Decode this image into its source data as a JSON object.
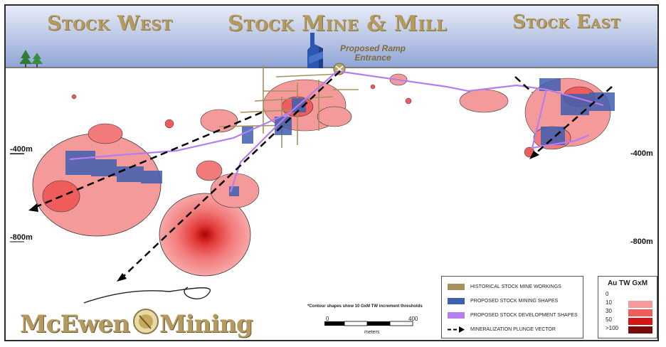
{
  "regions": {
    "west": "Stock West",
    "mill": "Stock Mine & Mill",
    "east": "Stock East"
  },
  "ramp_label_line1": "Proposed Ramp",
  "ramp_label_line2": "Entrance",
  "depths": {
    "left_400": "-400m",
    "left_800": "-800m",
    "right_400": "-400m",
    "right_800": "-800m"
  },
  "legend": {
    "items": [
      {
        "label": "HISTORICAL STOCK MINE WORKINGS",
        "color": "#a8905a"
      },
      {
        "label": "PROPOSED STOCK MINING SHAPES",
        "color": "#3f5fb0"
      },
      {
        "label": "PROPOSED STOCK DEVELOPMENT SHAPES",
        "color": "#b57ef0"
      },
      {
        "label": "MINERALIZATION PLUNGE VECTOR",
        "color": "#000000"
      }
    ]
  },
  "grade_legend": {
    "title": "Au TW GxM",
    "levels": [
      {
        "label": "0",
        "color": "#ffffff"
      },
      {
        "label": "10",
        "color": "#f59a9a"
      },
      {
        "label": "30",
        "color": "#ee5c5c"
      },
      {
        "label": "50",
        "color": "#d31515"
      },
      {
        "label": ">100",
        "color": "#7a0a0a"
      }
    ]
  },
  "contour_note": "*Contour shapes show 10 GxM TW increment thresholds",
  "scale": {
    "start": "0",
    "end": "400",
    "unit": "meters"
  },
  "logo": {
    "part1": "McEwen",
    "part2": "Mining",
    "emblem_icon": "gold-pan-emblem-icon"
  },
  "icons": {
    "trees": "pine-trees-icon",
    "headframe": "headframe-icon",
    "ramp": "ramp-entrance-icon"
  }
}
